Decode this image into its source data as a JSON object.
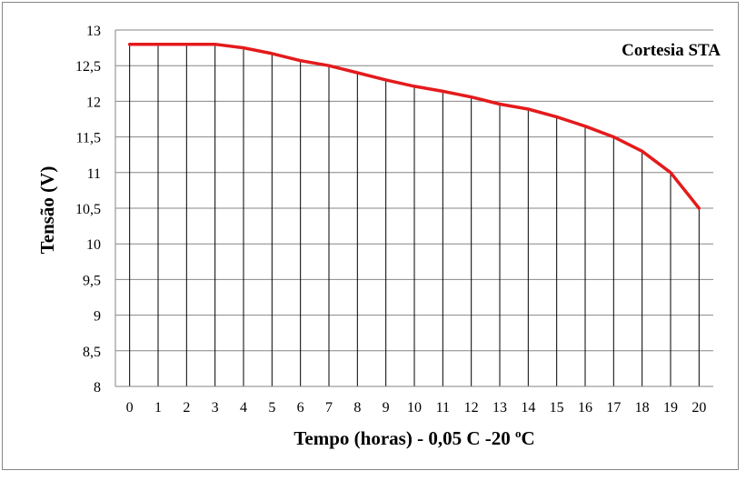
{
  "chart_data": {
    "type": "line",
    "title": "",
    "annotation": "Cortesia STA",
    "xlabel": "Tempo (horas) - 0,05 C -20 ºC",
    "xlabel_parts": {
      "before": "Tempo (horas) - 0,05 C -20 ",
      "sup": "o",
      "after": "C"
    },
    "ylabel": "Tensão (V)",
    "x": [
      0,
      1,
      2,
      3,
      4,
      5,
      6,
      7,
      8,
      9,
      10,
      11,
      12,
      13,
      14,
      15,
      16,
      17,
      18,
      19,
      20
    ],
    "x_tick_labels": [
      "0",
      "1",
      "2",
      "3",
      "4",
      "5",
      "6",
      "7",
      "8",
      "9",
      "10",
      "11",
      "12",
      "13",
      "14",
      "15",
      "16",
      "17",
      "18",
      "19",
      "20"
    ],
    "y_tick_labels": [
      "13",
      "12,5",
      "12",
      "11,5",
      "11",
      "10,5",
      "10",
      "9,5",
      "9",
      "8,5",
      "8"
    ],
    "y_ticks": [
      13,
      12.5,
      12,
      11.5,
      11,
      10.5,
      10,
      9.5,
      9,
      8.5,
      8
    ],
    "ylim": [
      8,
      13
    ],
    "series": [
      {
        "values": [
          12.8,
          12.8,
          12.8,
          12.8,
          12.75,
          12.67,
          12.57,
          12.5,
          12.4,
          12.3,
          12.21,
          12.14,
          12.06,
          11.96,
          11.89,
          11.78,
          11.65,
          11.5,
          11.3,
          11.0,
          10.5
        ]
      }
    ],
    "grid": {
      "horizontal": true,
      "vertical_droplines": true
    },
    "colors": {
      "line": "#e41a1c",
      "grid": "#868686",
      "dropline": "#000000"
    }
  }
}
